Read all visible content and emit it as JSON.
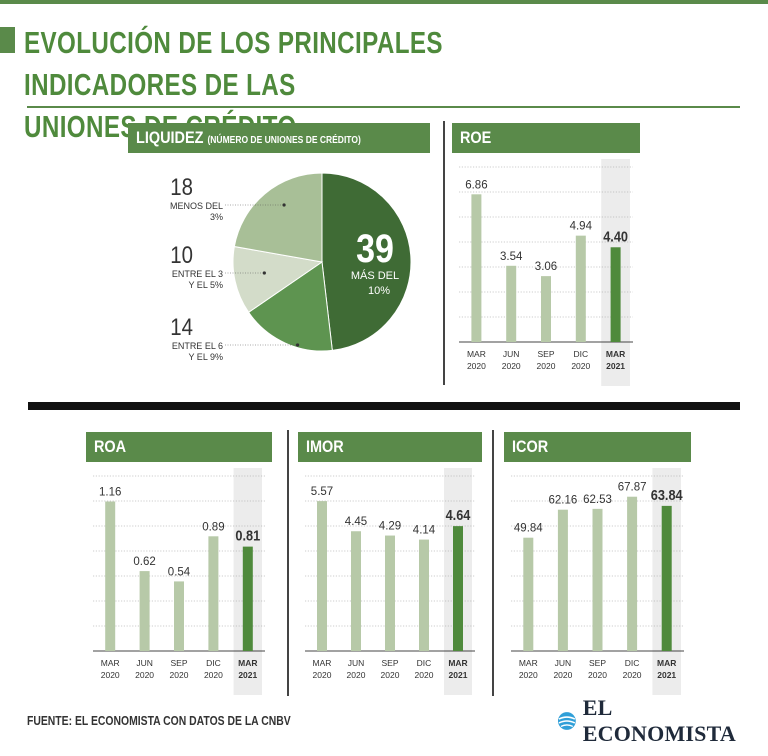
{
  "header": {
    "title_line1": "EVOLUCIÓN DE LOS PRINCIPALES INDICADORES DE LAS",
    "title_line2": "UNIONES DE CRÉDITO"
  },
  "footer": {
    "source": "FUENTE: EL ECONOMISTA CON DATOS DE LA CNBV",
    "logo": "EL ECONOMISTA",
    "logo_icon": "globe-icon"
  },
  "colors": {
    "brand_green": "#5a8a4a",
    "bar_light": "#b7c9a8",
    "bar_dark": "#4f8a3c",
    "highlight": "#ececec",
    "pie_dark": "#3f6b35",
    "pie_mid": "#5e9450",
    "pie_light": "#d3dcc9",
    "pie_soft": "#a8bf97"
  },
  "chart_data": [
    {
      "type": "pie",
      "title": "LIQUIDEZ",
      "subtitle": "(NÚMERO DE UNIONES DE CRÉDITO)",
      "slices": [
        {
          "value": 39,
          "label_l1": "MÁS DEL",
          "label_l2": "10%",
          "color_key": "pie_dark"
        },
        {
          "value": 14,
          "label_l1": "ENTRE EL 6",
          "label_l2": "Y EL 9%",
          "color_key": "pie_mid"
        },
        {
          "value": 10,
          "label_l1": "ENTRE EL 3",
          "label_l2": "Y EL 5%",
          "color_key": "pie_light"
        },
        {
          "value": 18,
          "label_l1": "MENOS DEL",
          "label_l2": "3%",
          "color_key": "pie_soft"
        }
      ]
    },
    {
      "type": "bar",
      "title": "ROE",
      "categories": [
        "MAR",
        "JUN",
        "SEP",
        "DIC",
        "MAR"
      ],
      "years": [
        "2020",
        "2020",
        "2020",
        "2020",
        "2021"
      ],
      "values": [
        6.86,
        3.54,
        3.06,
        4.94,
        4.4
      ],
      "labels": [
        "6.86",
        "3.54",
        "3.06",
        "4.94",
        "4.40"
      ],
      "ylim": [
        0,
        8.5
      ],
      "highlight_index": 4
    },
    {
      "type": "bar",
      "title": "ROA",
      "categories": [
        "MAR",
        "JUN",
        "SEP",
        "DIC",
        "MAR"
      ],
      "years": [
        "2020",
        "2020",
        "2020",
        "2020",
        "2021"
      ],
      "values": [
        1.16,
        0.62,
        0.54,
        0.89,
        0.81
      ],
      "labels": [
        "1.16",
        "0.62",
        "0.54",
        "0.89",
        "0.81"
      ],
      "ylim": [
        0,
        1.42
      ],
      "highlight_index": 4
    },
    {
      "type": "bar",
      "title": "IMOR",
      "categories": [
        "MAR",
        "JUN",
        "SEP",
        "DIC",
        "MAR"
      ],
      "years": [
        "2020",
        "2020",
        "2020",
        "2020",
        "2021"
      ],
      "values": [
        5.57,
        4.45,
        4.29,
        4.14,
        4.64
      ],
      "labels": [
        "5.57",
        "4.45",
        "4.29",
        "4.14",
        "4.64"
      ],
      "ylim": [
        0,
        6.8
      ],
      "highlight_index": 4
    },
    {
      "type": "bar",
      "title": "ICOR",
      "categories": [
        "MAR",
        "JUN",
        "SEP",
        "DIC",
        "MAR"
      ],
      "years": [
        "2020",
        "2020",
        "2020",
        "2020",
        "2021"
      ],
      "values": [
        49.84,
        62.16,
        62.53,
        67.87,
        63.84
      ],
      "labels": [
        "49.84",
        "62.16",
        "62.53",
        "67.87",
        "63.84"
      ],
      "ylim": [
        0,
        80.5
      ],
      "highlight_index": 4
    }
  ]
}
